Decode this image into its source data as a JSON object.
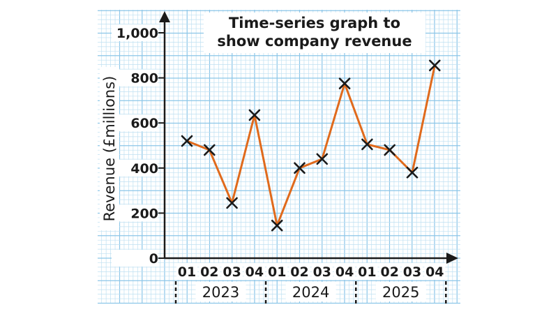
{
  "chart_data": {
    "type": "line",
    "title_lines": [
      "Time-series graph to",
      "show company revenue"
    ],
    "ylabel": "Revenue (£millions)",
    "ylim": [
      0,
      1000
    ],
    "yticks": [
      0,
      200,
      400,
      600,
      800,
      1000
    ],
    "ytick_labels": [
      "0",
      "200",
      "400",
      "600",
      "800",
      "1,000"
    ],
    "categories": [
      "01",
      "02",
      "03",
      "04",
      "01",
      "02",
      "03",
      "04",
      "01",
      "02",
      "03",
      "04"
    ],
    "groups": [
      {
        "label": "2023",
        "start": 0,
        "end": 3
      },
      {
        "label": "2024",
        "start": 4,
        "end": 7
      },
      {
        "label": "2025",
        "start": 8,
        "end": 11
      }
    ],
    "values": [
      520,
      480,
      245,
      635,
      145,
      400,
      440,
      775,
      505,
      480,
      380,
      855
    ],
    "marker": "x",
    "grid": true,
    "colors": {
      "line": "#e06a1c",
      "marker": "#1a1a1a",
      "grid_minor": "#bfe0f2",
      "grid_major": "#8cc6e8",
      "axis": "#1a1a1a"
    }
  }
}
